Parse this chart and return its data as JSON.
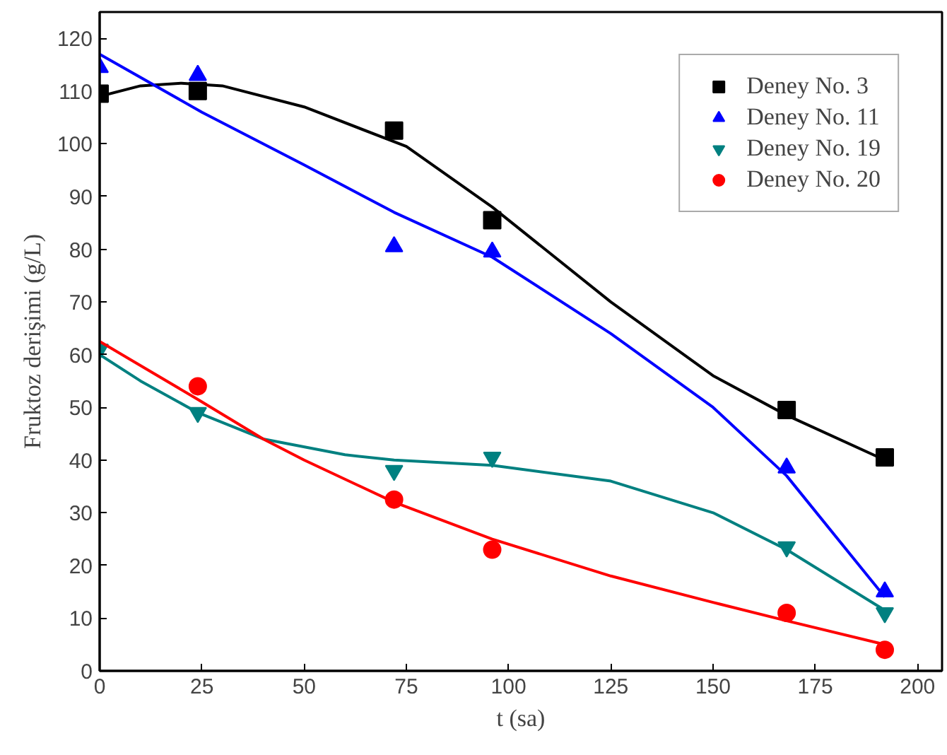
{
  "chart_data": {
    "type": "scatter",
    "xlabel": "t (sa)",
    "ylabel": "Fruktoz derişimi (g/L)",
    "xlim": [
      0,
      206
    ],
    "ylim": [
      0,
      125
    ],
    "xticks": [
      0,
      25,
      50,
      75,
      100,
      125,
      150,
      175,
      200
    ],
    "yticks": [
      0,
      10,
      20,
      30,
      40,
      50,
      60,
      70,
      80,
      90,
      100,
      110,
      120
    ],
    "grid": false,
    "legend": "top right",
    "series": [
      {
        "name": "Deney No. 3",
        "color": "#000000",
        "marker": "square",
        "x": [
          0,
          24,
          72,
          96,
          168,
          192
        ],
        "values": [
          109.5,
          110,
          102.5,
          85.5,
          49.5,
          40.5
        ]
      },
      {
        "name": "Deney No. 11",
        "color": "#0000ff",
        "marker": "triangle",
        "x": [
          0,
          24,
          72,
          96,
          168,
          192
        ],
        "values": [
          114.5,
          113,
          80.5,
          79.5,
          38.5,
          15
        ]
      },
      {
        "name": "Deney No. 19",
        "color": "#008080",
        "x": [
          0,
          24,
          72,
          96,
          168,
          192
        ],
        "values": [
          61,
          49,
          38,
          40.5,
          23.5,
          11
        ]
      },
      {
        "name": "Deney No. 20",
        "color": "#ff0000",
        "marker": "circle",
        "x": [
          24,
          72,
          96,
          168,
          192
        ],
        "values": [
          54,
          32.5,
          23,
          11,
          4
        ]
      },
      {
        "type": "line",
        "color": "#000000",
        "x": [
          0,
          10,
          20,
          30,
          50,
          75,
          96,
          125,
          150,
          168,
          192
        ],
        "values": [
          109,
          111,
          111.5,
          111,
          107,
          99.5,
          88,
          70,
          56,
          48.5,
          40
        ]
      },
      {
        "type": "line",
        "color": "#0000ff",
        "x": [
          0,
          25,
          50,
          72,
          96,
          125,
          150,
          168,
          192
        ],
        "values": [
          117,
          106,
          96,
          87,
          78.5,
          64,
          50,
          37,
          14
        ]
      },
      {
        "type": "line",
        "color": "#008080",
        "x": [
          0,
          10,
          24,
          40,
          60,
          72,
          96,
          125,
          150,
          168,
          192
        ],
        "values": [
          60,
          55,
          49,
          44,
          41,
          40,
          39,
          36,
          30,
          23,
          11.5
        ]
      },
      {
        "type": "line",
        "color": "#ff0000",
        "x": [
          0,
          24,
          40,
          50,
          72,
          96,
          125,
          150,
          168,
          192
        ],
        "values": [
          62.5,
          51.5,
          44,
          40,
          32,
          25,
          18,
          13,
          9.5,
          5
        ]
      }
    ]
  }
}
